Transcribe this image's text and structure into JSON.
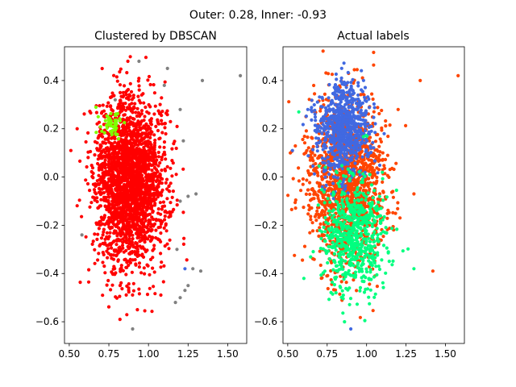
{
  "suptitle": "Outer: 0.28, Inner: -0.93",
  "chart_data": [
    {
      "type": "scatter",
      "title": "Clustered by DBSCAN",
      "xlabel": "",
      "ylabel": "",
      "xlim": [
        0.47,
        1.62
      ],
      "ylim": [
        -0.69,
        0.54
      ],
      "xticks": [
        "0.50",
        "0.75",
        "1.00",
        "1.25",
        "1.50"
      ],
      "yticks": [
        "0.4",
        "0.2",
        "0.0",
        "−0.2",
        "−0.4",
        "−0.6"
      ],
      "grid": false,
      "legend": "none",
      "series": [
        {
          "color": "#ff0000",
          "role": "main cluster",
          "distribution": {
            "x_center": 0.88,
            "x_spread": 0.11,
            "y_center": -0.02,
            "y_spread": 0.17,
            "count": 2400
          },
          "points": [
            [
              0.51,
              0.11
            ],
            [
              0.55,
              0.2
            ],
            [
              0.87,
              0.48
            ],
            [
              0.71,
              -0.49
            ],
            [
              0.93,
              -0.55
            ],
            [
              0.82,
              -0.59
            ]
          ]
        },
        {
          "color": "#7fff00",
          "role": "small cluster",
          "distribution": {
            "x_center": 0.77,
            "x_spread": 0.04,
            "y_center": 0.22,
            "y_spread": 0.03,
            "count": 50
          }
        },
        {
          "color": "#808080",
          "role": "noise",
          "points": [
            [
              1.58,
              0.42
            ],
            [
              1.34,
              0.4
            ],
            [
              1.2,
              0.28
            ],
            [
              1.22,
              0.15
            ],
            [
              1.28,
              -0.38
            ],
            [
              1.33,
              -0.39
            ],
            [
              1.25,
              -0.45
            ],
            [
              1.23,
              -0.47
            ],
            [
              1.2,
              -0.5
            ],
            [
              1.17,
              -0.52
            ],
            [
              0.9,
              -0.63
            ],
            [
              0.58,
              -0.24
            ],
            [
              1.25,
              -0.08
            ],
            [
              1.12,
              0.45
            ],
            [
              0.94,
              0.48
            ],
            [
              0.79,
              0.32
            ],
            [
              1.18,
              -0.3
            ],
            [
              1.1,
              0.38
            ],
            [
              1.3,
              -0.07
            ],
            [
              1.2,
              -0.1
            ]
          ]
        },
        {
          "color": "#4169e1",
          "role": "minor cluster",
          "points": [
            [
              1.23,
              -0.38
            ]
          ]
        }
      ]
    },
    {
      "type": "scatter",
      "title": "Actual labels",
      "xlabel": "",
      "ylabel": "",
      "xlim": [
        0.47,
        1.62
      ],
      "ylim": [
        -0.69,
        0.54
      ],
      "xticks": [
        "0.50",
        "0.75",
        "1.00",
        "1.25",
        "1.50"
      ],
      "yticks": [
        "0.4",
        "0.2",
        "0.0",
        "−0.2",
        "−0.4",
        "−0.6"
      ],
      "grid": false,
      "legend": "none",
      "series": [
        {
          "color": "#ff4500",
          "role": "label A",
          "distribution": {
            "x_center": 0.87,
            "x_spread": 0.12,
            "y_center": -0.02,
            "y_spread": 0.17,
            "count": 1500
          },
          "points": [
            [
              1.58,
              0.42
            ],
            [
              1.34,
              0.4
            ],
            [
              1.42,
              -0.39
            ],
            [
              1.2,
              0.28
            ],
            [
              1.3,
              -0.07
            ]
          ]
        },
        {
          "color": "#4169e1",
          "role": "label B",
          "distribution": {
            "x_center": 0.86,
            "x_spread": 0.08,
            "y_center": 0.2,
            "y_spread": 0.1,
            "count": 750
          },
          "points": [
            [
              0.53,
              0.11
            ],
            [
              0.9,
              -0.63
            ]
          ]
        },
        {
          "color": "#00ff7f",
          "role": "label C",
          "distribution": {
            "x_center": 0.92,
            "x_spread": 0.1,
            "y_center": -0.24,
            "y_spread": 0.12,
            "count": 650
          },
          "points": [
            [
              1.3,
              -0.38
            ],
            [
              0.86,
              -0.6
            ],
            [
              0.57,
              0.27
            ]
          ]
        }
      ]
    }
  ]
}
